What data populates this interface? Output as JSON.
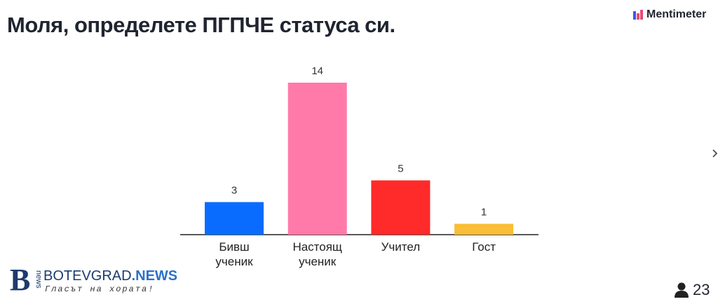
{
  "chart_data": {
    "type": "bar",
    "title": "Моля, определете ПГПЧЕ статуса си.",
    "categories": [
      "Бивш ученик",
      "Настоящ ученик",
      "Учител",
      "Гост"
    ],
    "values": [
      3,
      14,
      5,
      1
    ],
    "colors": [
      "#0a6cff",
      "#ff7aa8",
      "#ff2a2a",
      "#f9be35"
    ]
  },
  "brand": "Mentimeter",
  "participants": 23,
  "watermark": {
    "logo_letter": "B",
    "logo_word": "news",
    "name": "BOTEVGRAD",
    "suffix": ".NEWS",
    "slogan": "Гласът на хората!"
  }
}
